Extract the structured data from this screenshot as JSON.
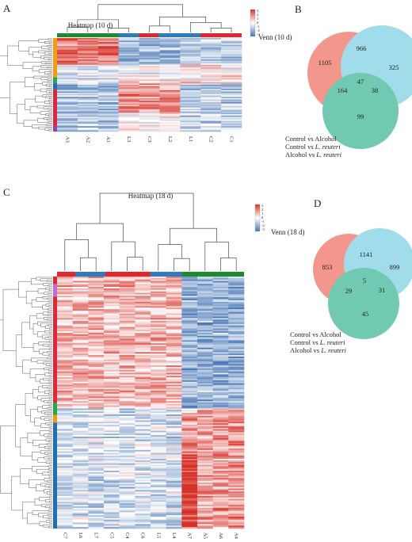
{
  "heatmap_10d": {
    "panel": "A",
    "title": "Heatmap (10 d)",
    "columns": [
      "A3",
      "A2",
      "A1",
      "L3",
      "C3",
      "L2",
      "L1",
      "C2",
      "C1"
    ],
    "scale_labels": [
      "3",
      "2",
      "1",
      "0",
      "-1",
      "-2",
      "-3"
    ]
  },
  "venn_10d": {
    "panel": "B",
    "title": "Venn (10 d)",
    "counts": [
      "1105",
      "966",
      "325",
      "47",
      "164",
      "38",
      "99"
    ],
    "legend": [
      {
        "text": "Control vs Alcohol"
      },
      {
        "text": "Control vs ",
        "italic": "L. reuteri"
      },
      {
        "text": "Alcohol vs ",
        "italic": "L. reuteri"
      }
    ]
  },
  "heatmap_18d": {
    "panel": "C",
    "title": "Heatmap (18 d)",
    "columns": [
      "C7",
      "L6",
      "L7",
      "C5",
      "C4",
      "C6",
      "L5",
      "L4",
      "A7",
      "A5",
      "A6",
      "A4"
    ],
    "scale_labels": [
      "3",
      "2",
      "1",
      "0",
      "-1",
      "-2",
      "-3"
    ]
  },
  "venn_18d": {
    "panel": "D",
    "title": "Venn (18 d)",
    "counts": [
      "853",
      "1141",
      "899",
      "5",
      "29",
      "31",
      "45"
    ],
    "legend": [
      {
        "text": "Control vs Alcohol"
      },
      {
        "text": "Control vs ",
        "italic": "L. reuteri"
      },
      {
        "text": "Alcohol vs ",
        "italic": "L. reuteri"
      }
    ]
  }
}
